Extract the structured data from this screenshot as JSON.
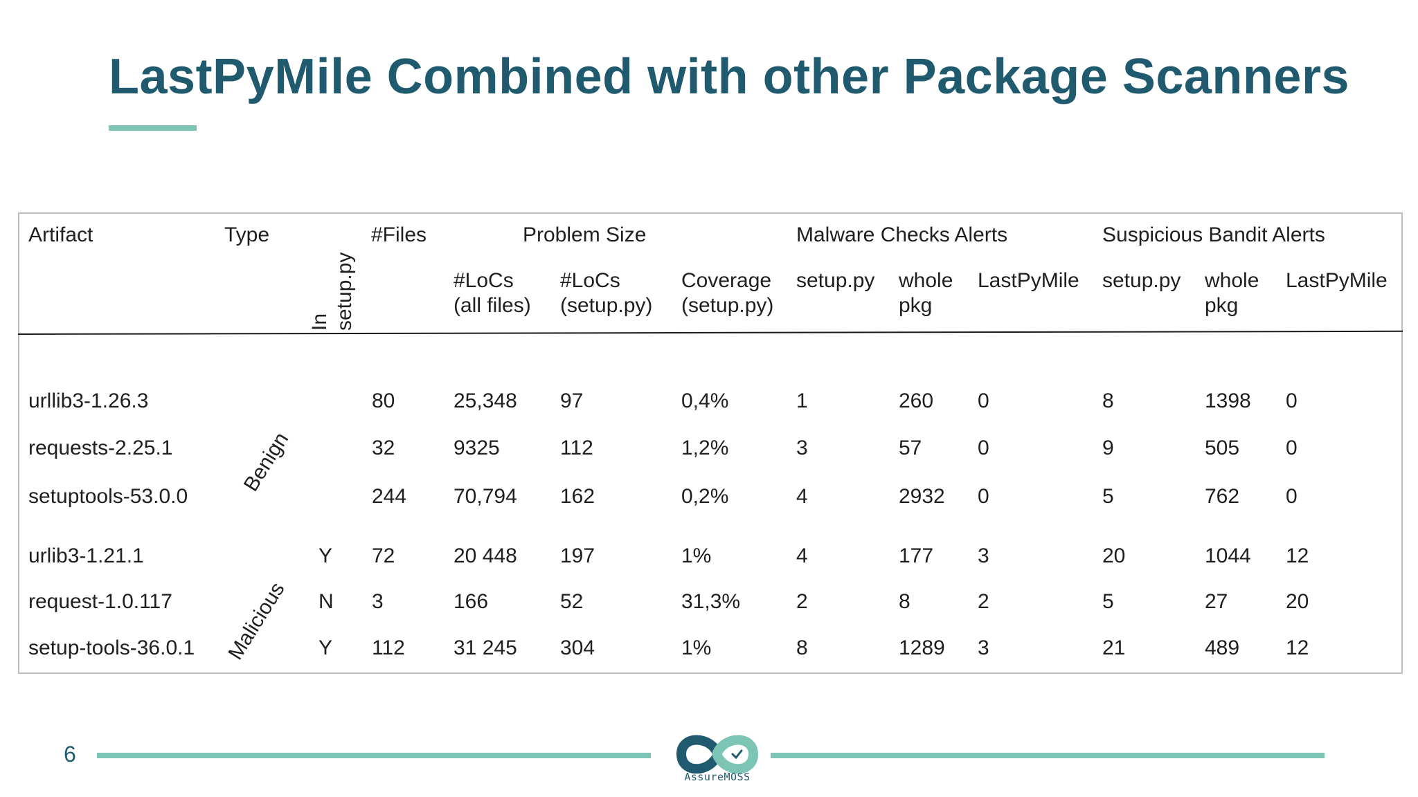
{
  "slide": {
    "title": "LastPyMile Combined with other Package Scanners",
    "page_number": "6",
    "logo_text": "AssureMOSS",
    "colors": {
      "title": "#1f5a6e",
      "accent": "#7cc5b5"
    }
  },
  "table": {
    "headers": {
      "artifact": "Artifact",
      "type": "Type",
      "in_setup_line1": "In",
      "in_setup_line2": "setup.py",
      "files": "#Files",
      "problem_size": "Problem Size",
      "malware": "Malware Checks Alerts",
      "bandit": "Suspicious Bandit Alerts",
      "locs_all_1": "#LoCs",
      "locs_all_2": "(all files)",
      "locs_setup_1": "#LoCs",
      "locs_setup_2": "(setup.py)",
      "coverage_1": "Coverage",
      "coverage_2": "(setup.py)",
      "mal_setup": "setup.py",
      "mal_whole_1": "whole",
      "mal_whole_2": "pkg",
      "mal_lpm": "LastPyMile",
      "ban_setup": "setup.py",
      "ban_whole_1": "whole",
      "ban_whole_2": "pkg",
      "ban_lpm": "LastPyMile"
    },
    "groups": {
      "benign": "Benign",
      "malicious": "Malicious"
    },
    "rows": [
      {
        "artifact": "urllib3-1.26.3",
        "in_setup": "",
        "files": "80",
        "locs_all": "25,348",
        "locs_setup": "97",
        "coverage": "0,4%",
        "mal_setup": "1",
        "mal_whole": "260",
        "mal_lpm": "0",
        "ban_setup": "8",
        "ban_whole": "1398",
        "ban_lpm": "0"
      },
      {
        "artifact": "requests-2.25.1",
        "in_setup": "",
        "files": "32",
        "locs_all": "9325",
        "locs_setup": "112",
        "coverage": "1,2%",
        "mal_setup": "3",
        "mal_whole": "57",
        "mal_lpm": "0",
        "ban_setup": "9",
        "ban_whole": "505",
        "ban_lpm": "0"
      },
      {
        "artifact": "setuptools-53.0.0",
        "in_setup": "",
        "files": "244",
        "locs_all": "70,794",
        "locs_setup": "162",
        "coverage": "0,2%",
        "mal_setup": "4",
        "mal_whole": "2932",
        "mal_lpm": "0",
        "ban_setup": "5",
        "ban_whole": "762",
        "ban_lpm": "0"
      },
      {
        "artifact": "urlib3-1.21.1",
        "in_setup": "Y",
        "files": "72",
        "locs_all": "20 448",
        "locs_setup": "197",
        "coverage": "1%",
        "mal_setup": "4",
        "mal_whole": "177",
        "mal_lpm": "3",
        "ban_setup": "20",
        "ban_whole": "1044",
        "ban_lpm": "12"
      },
      {
        "artifact": "request-1.0.117",
        "in_setup": "N",
        "files": "3",
        "locs_all": "166",
        "locs_setup": "52",
        "coverage": "31,3%",
        "mal_setup": "2",
        "mal_whole": "8",
        "mal_lpm": "2",
        "ban_setup": "5",
        "ban_whole": "27",
        "ban_lpm": "20"
      },
      {
        "artifact": "setup-tools-36.0.1",
        "in_setup": "Y",
        "files": "112",
        "locs_all": "31 245",
        "locs_setup": "304",
        "coverage": "1%",
        "mal_setup": "8",
        "mal_whole": "1289",
        "mal_lpm": "3",
        "ban_setup": "21",
        "ban_whole": "489",
        "ban_lpm": "12"
      }
    ]
  }
}
